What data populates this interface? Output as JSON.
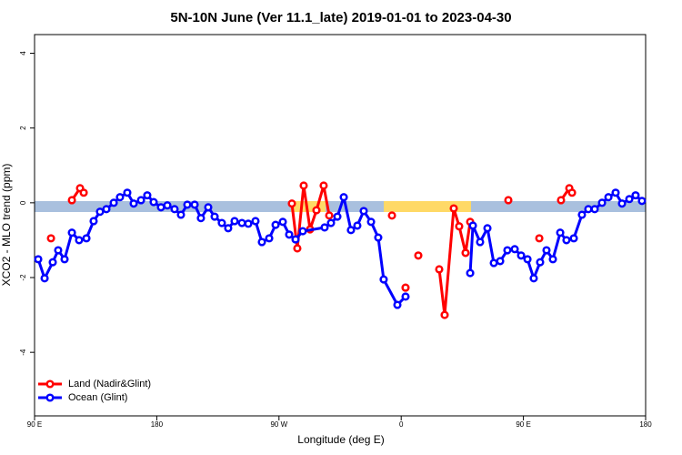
{
  "chart_data": {
    "type": "line",
    "title": "5N-10N June (Ver 11.1_late)   2019-01-01 to 2023-04-30",
    "x_label": "Longitude (deg E)",
    "y_label": "XCO2 - MLO trend (ppm)",
    "xlim": [
      90,
      540
    ],
    "xticks": [
      {
        "value": 90,
        "label": "90 E"
      },
      180,
      {
        "value": 270,
        "label": "90 W"
      },
      {
        "value": 360,
        "label": "0"
      },
      {
        "value": 450,
        "label": "90 E"
      },
      {
        "value": 540,
        "label": "180"
      }
    ],
    "ylim": [
      -5.7,
      4.5
    ],
    "yticks": [
      -4,
      -2,
      0,
      2,
      4
    ],
    "legend": "bottom-left",
    "series": [
      {
        "name": "Land (Nadir&Glint)",
        "color": "#ff0000",
        "x": [
          102.1,
          null,
          117.5,
          123.5,
          126.2,
          null,
          279.5,
          283.5,
          288.2,
          292.9,
          297.6,
          302.9,
          307.0,
          null,
          353.2,
          null,
          363.2,
          null,
          372.6,
          null,
          388.0,
          392.0,
          398.7,
          402.7,
          407.4,
          410.8,
          null,
          438.9,
          null,
          461.7,
          null,
          477.7,
          483.8,
          485.8
        ],
        "values": [
          -0.95,
          null,
          0.07,
          0.39,
          0.27,
          null,
          -0.02,
          -1.22,
          0.46,
          -0.71,
          -0.2,
          0.46,
          -0.34,
          null,
          -0.34,
          null,
          -2.27,
          null,
          -1.41,
          null,
          -1.78,
          -3.0,
          -0.15,
          -0.63,
          -1.34,
          -0.51,
          null,
          0.07,
          null,
          -0.95,
          null,
          0.07,
          0.39,
          0.27
        ]
      },
      {
        "name": "Ocean (Glint)",
        "color": "#0000ff",
        "x": [
          92.7,
          97.4,
          103.4,
          107.4,
          112.1,
          117.5,
          122.8,
          128.2,
          133.5,
          138.2,
          142.9,
          148.3,
          152.9,
          158.3,
          163.0,
          168.4,
          173.0,
          177.7,
          183.1,
          187.8,
          193.1,
          197.8,
          202.5,
          207.9,
          212.5,
          217.9,
          222.6,
          227.9,
          232.6,
          237.3,
          242.7,
          247.4,
          252.7,
          257.4,
          262.8,
          267.5,
          272.8,
          277.5,
          282.2,
          287.5,
          303.6,
          308.3,
          313.0,
          317.7,
          323.0,
          327.7,
          332.4,
          337.8,
          343.1,
          347.1,
          357.2,
          363.2,
          null,
          410.8,
          412.8,
          418.1,
          423.5,
          428.2,
          432.9,
          438.2,
          443.6,
          448.3,
          453.0,
          457.6,
          462.3,
          467.0,
          471.7,
          477.1,
          481.7,
          487.1,
          493.1,
          497.8,
          502.5,
          507.9,
          512.6,
          517.9,
          522.6,
          528.0,
          532.6,
          537.3
        ],
        "values": [
          -1.51,
          -2.02,
          -1.59,
          -1.27,
          -1.51,
          -0.8,
          -1.0,
          -0.95,
          -0.49,
          -0.24,
          -0.17,
          0,
          0.15,
          0.27,
          -0.02,
          0.07,
          0.2,
          0.02,
          -0.12,
          -0.07,
          -0.17,
          -0.32,
          -0.05,
          -0.05,
          -0.41,
          -0.12,
          -0.37,
          -0.54,
          -0.68,
          -0.49,
          -0.54,
          -0.56,
          -0.49,
          -1.05,
          -0.95,
          -0.59,
          -0.51,
          -0.85,
          -0.98,
          -0.76,
          -0.66,
          -0.54,
          -0.37,
          0.15,
          -0.73,
          -0.61,
          -0.22,
          -0.51,
          -0.93,
          -2.05,
          -2.73,
          -2.51,
          null,
          -1.88,
          -0.61,
          -1.05,
          -0.68,
          -1.61,
          -1.56,
          -1.27,
          -1.24,
          -1.41,
          -1.51,
          -2.02,
          -1.59,
          -1.27,
          -1.51,
          -0.8,
          -1.0,
          -0.95,
          -0.32,
          -0.17,
          -0.17,
          0,
          0.15,
          0.27,
          -0.02,
          0.1,
          0.2,
          0.05
        ]
      }
    ]
  }
}
